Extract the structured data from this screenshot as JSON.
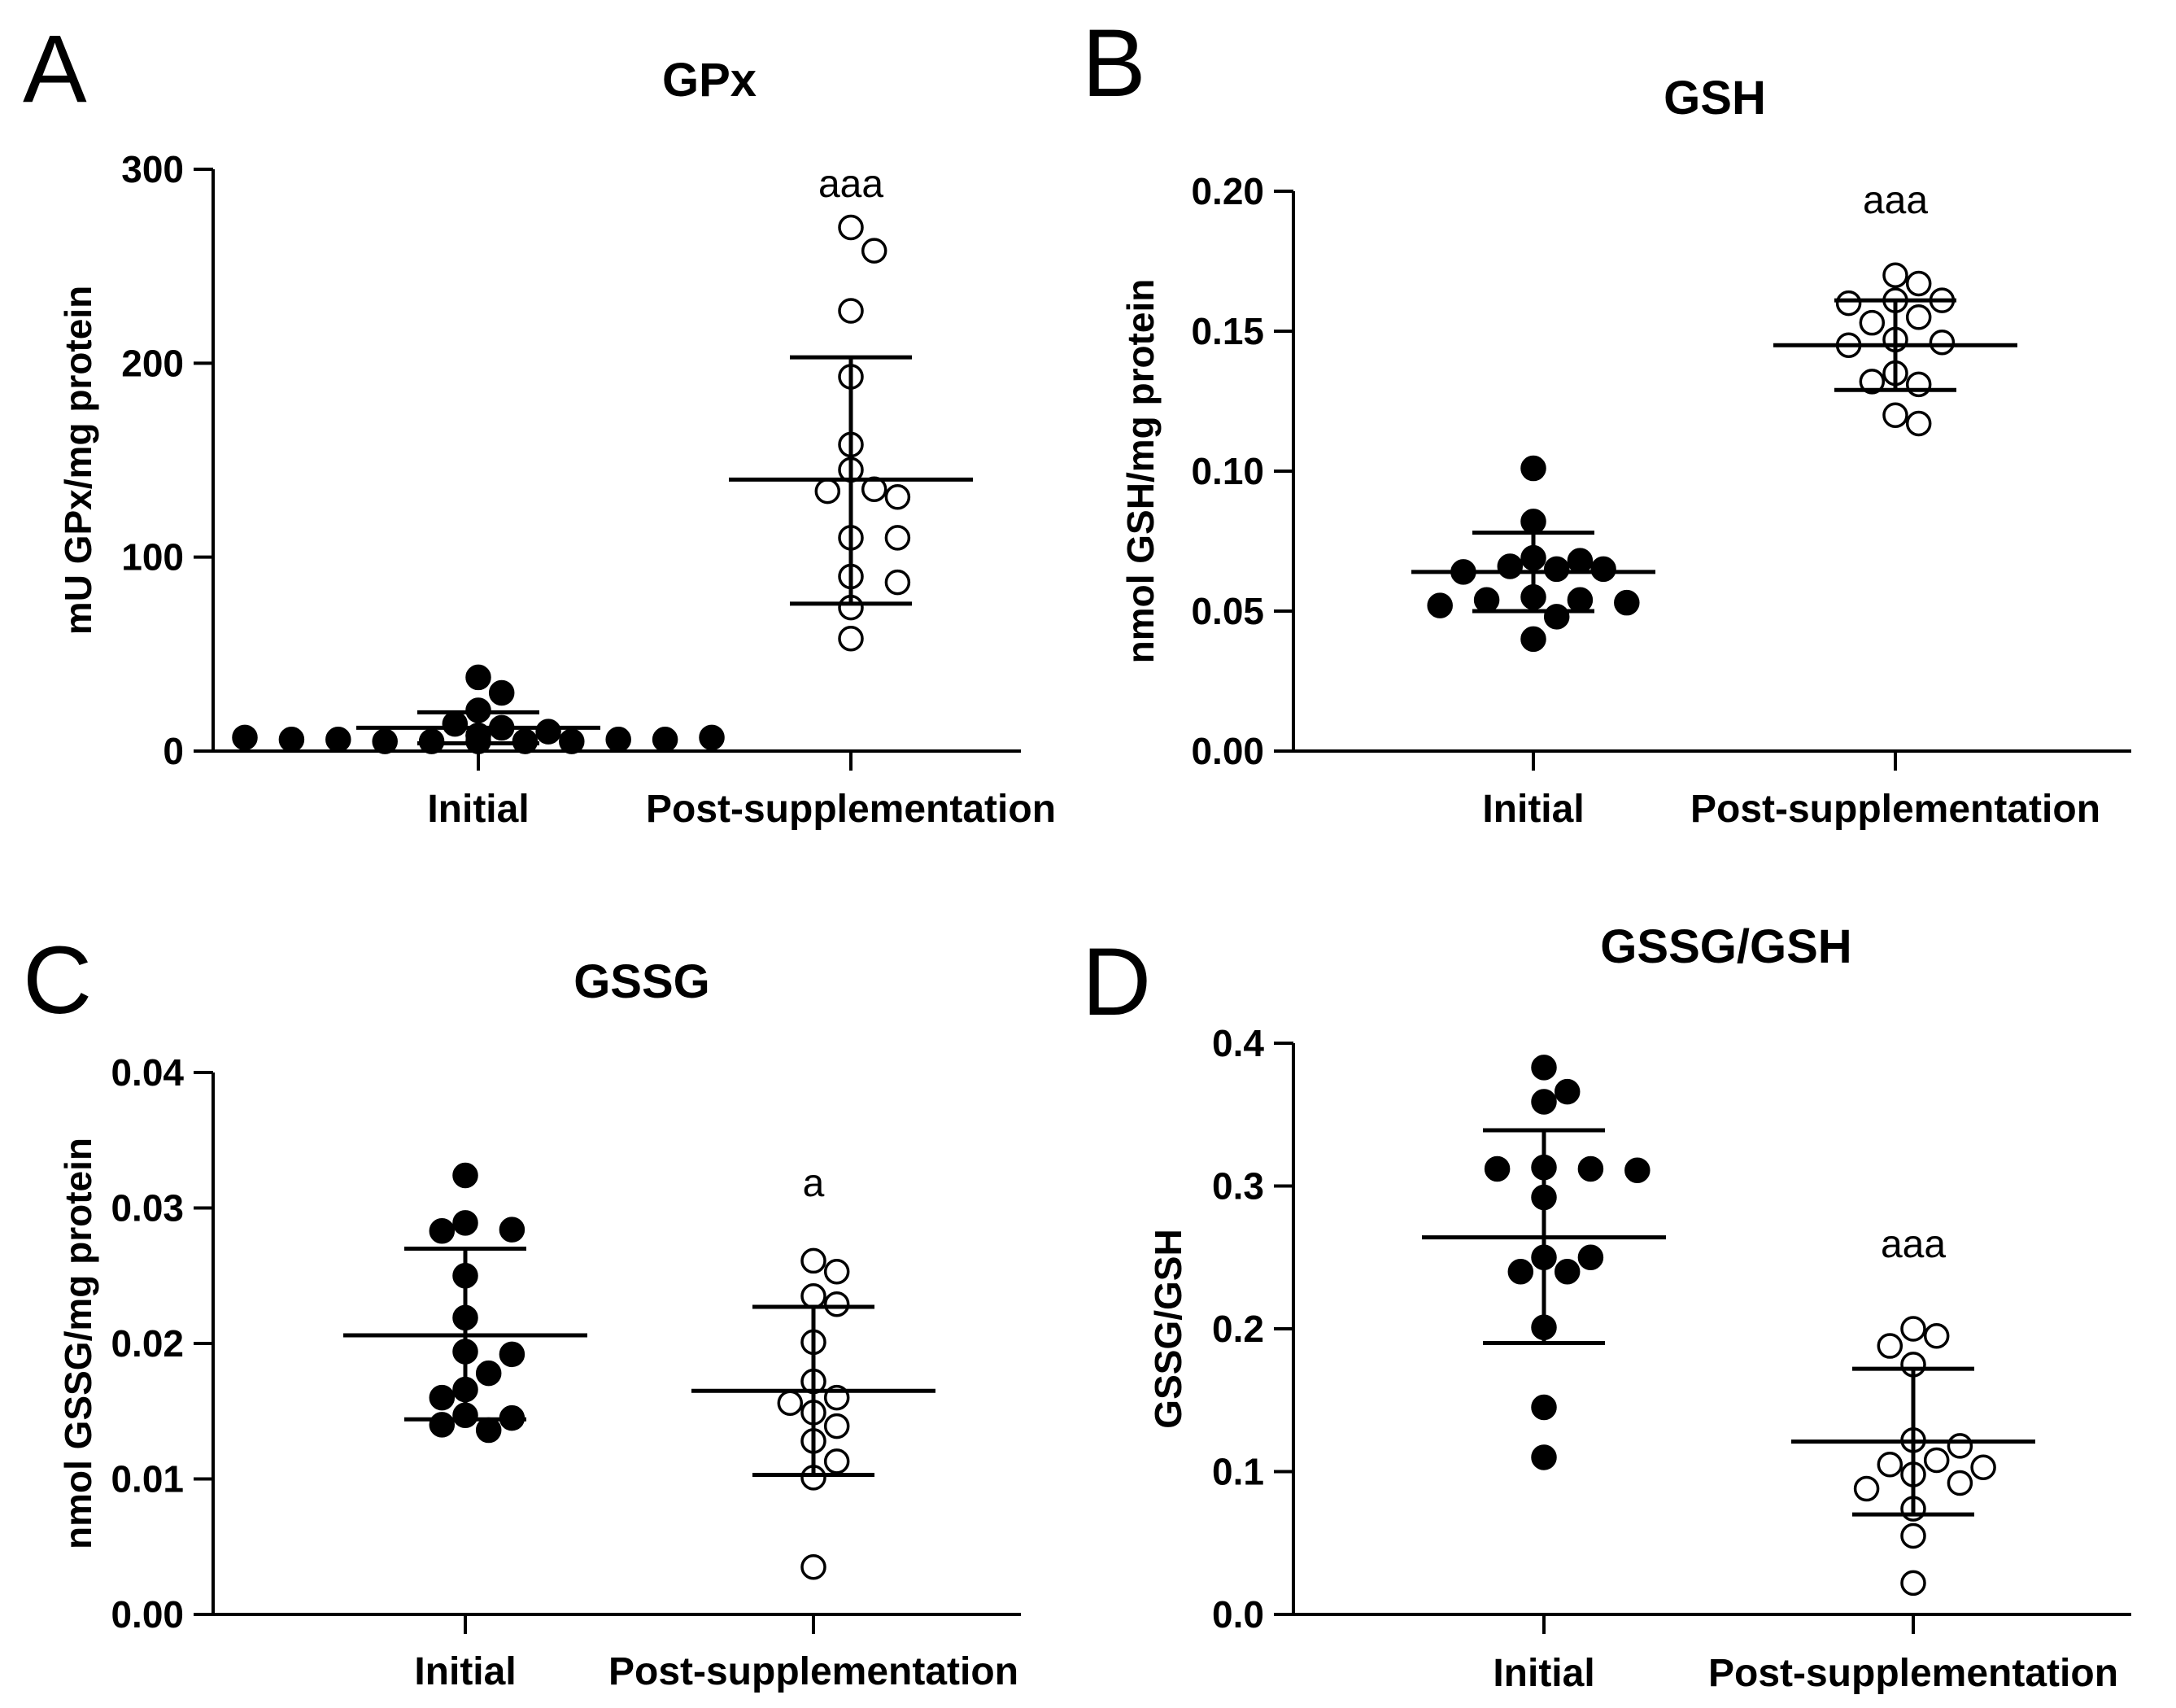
{
  "chart_data": [
    {
      "type": "scatter",
      "panel": "A",
      "title": "GPx",
      "ylabel": "mU GPx/mg protein",
      "ylim": [
        0,
        300
      ],
      "yticks": [
        "0",
        "100",
        "200",
        "300"
      ],
      "categories": [
        "Initial",
        "Post-supplementation"
      ],
      "series": [
        {
          "name": "Initial",
          "marker": "filled",
          "x_index": 0,
          "values": [
            5,
            5,
            5,
            5,
            5,
            6,
            6,
            6,
            6,
            7,
            7,
            8,
            8,
            10,
            12,
            14,
            21,
            30,
            38
          ],
          "mean": 12,
          "sd_low": 4,
          "sd_high": 20,
          "significance": ""
        },
        {
          "name": "Post-supplementation",
          "marker": "open",
          "x_index": 1,
          "values": [
            270,
            258,
            227,
            193,
            158,
            145,
            135,
            134,
            131,
            110,
            110,
            90,
            87,
            74,
            58
          ],
          "mean": 140,
          "sd_low": 76,
          "sd_high": 203,
          "significance": "aaa"
        }
      ]
    },
    {
      "type": "scatter",
      "panel": "B",
      "title": "GSH",
      "ylabel": "nmol GSH/mg protein",
      "ylim": [
        0,
        0.2
      ],
      "yticks": [
        "0.00",
        "0.05",
        "0.10",
        "0.15",
        "0.20"
      ],
      "categories": [
        "Initial",
        "Post-supplementation"
      ],
      "series": [
        {
          "name": "Initial",
          "marker": "filled",
          "x_index": 0,
          "values": [
            0.101,
            0.082,
            0.069,
            0.068,
            0.066,
            0.065,
            0.065,
            0.064,
            0.055,
            0.054,
            0.054,
            0.053,
            0.052,
            0.048,
            0.04
          ],
          "mean": 0.064,
          "sd_low": 0.05,
          "sd_high": 0.078,
          "significance": ""
        },
        {
          "name": "Post-supplementation",
          "marker": "open",
          "x_index": 1,
          "values": [
            0.17,
            0.167,
            0.161,
            0.161,
            0.16,
            0.155,
            0.153,
            0.147,
            0.146,
            0.145,
            0.135,
            0.131,
            0.132,
            0.12,
            0.117
          ],
          "mean": 0.145,
          "sd_low": 0.129,
          "sd_high": 0.161,
          "significance": "aaa"
        }
      ]
    },
    {
      "type": "scatter",
      "panel": "C",
      "title": "GSSG",
      "ylabel": "nmol GSSG/mg protein",
      "ylim": [
        0,
        0.04
      ],
      "yticks": [
        "0.00",
        "0.01",
        "0.02",
        "0.03",
        "0.04"
      ],
      "categories": [
        "Initial",
        "Post-supplementation"
      ],
      "series": [
        {
          "name": "Initial",
          "marker": "filled",
          "x_index": 0,
          "values": [
            0.0324,
            0.0289,
            0.0284,
            0.0283,
            0.025,
            0.0219,
            0.0194,
            0.0192,
            0.0178,
            0.0166,
            0.016,
            0.0147,
            0.0145,
            0.014,
            0.0136
          ],
          "mean": 0.0206,
          "sd_low": 0.0144,
          "sd_high": 0.027,
          "significance": ""
        },
        {
          "name": "Post-supplementation",
          "marker": "open",
          "x_index": 1,
          "values": [
            0.0261,
            0.0253,
            0.0235,
            0.0229,
            0.0201,
            0.0172,
            0.016,
            0.0156,
            0.0149,
            0.0139,
            0.0128,
            0.0113,
            0.0101,
            0.0035
          ],
          "mean": 0.0165,
          "sd_low": 0.0103,
          "sd_high": 0.0227,
          "significance": "a"
        }
      ]
    },
    {
      "type": "scatter",
      "panel": "D",
      "title": "GSSG/GSH",
      "ylabel": "GSSG/GSH",
      "ylim": [
        0,
        0.4
      ],
      "yticks": [
        "0.0",
        "0.1",
        "0.2",
        "0.3",
        "0.4"
      ],
      "categories": [
        "Initial",
        "Post-supplementation"
      ],
      "series": [
        {
          "name": "Initial",
          "marker": "filled",
          "x_index": 0,
          "values": [
            0.383,
            0.366,
            0.359,
            0.313,
            0.312,
            0.312,
            0.311,
            0.292,
            0.25,
            0.25,
            0.24,
            0.24,
            0.201,
            0.145,
            0.11
          ],
          "mean": 0.264,
          "sd_low": 0.19,
          "sd_high": 0.339,
          "significance": ""
        },
        {
          "name": "Post-supplementation",
          "marker": "open",
          "x_index": 1,
          "values": [
            0.2,
            0.195,
            0.188,
            0.175,
            0.122,
            0.118,
            0.108,
            0.105,
            0.103,
            0.098,
            0.092,
            0.088,
            0.074,
            0.055,
            0.022
          ],
          "mean": 0.121,
          "sd_low": 0.07,
          "sd_high": 0.172,
          "significance": "aaa"
        }
      ]
    }
  ]
}
